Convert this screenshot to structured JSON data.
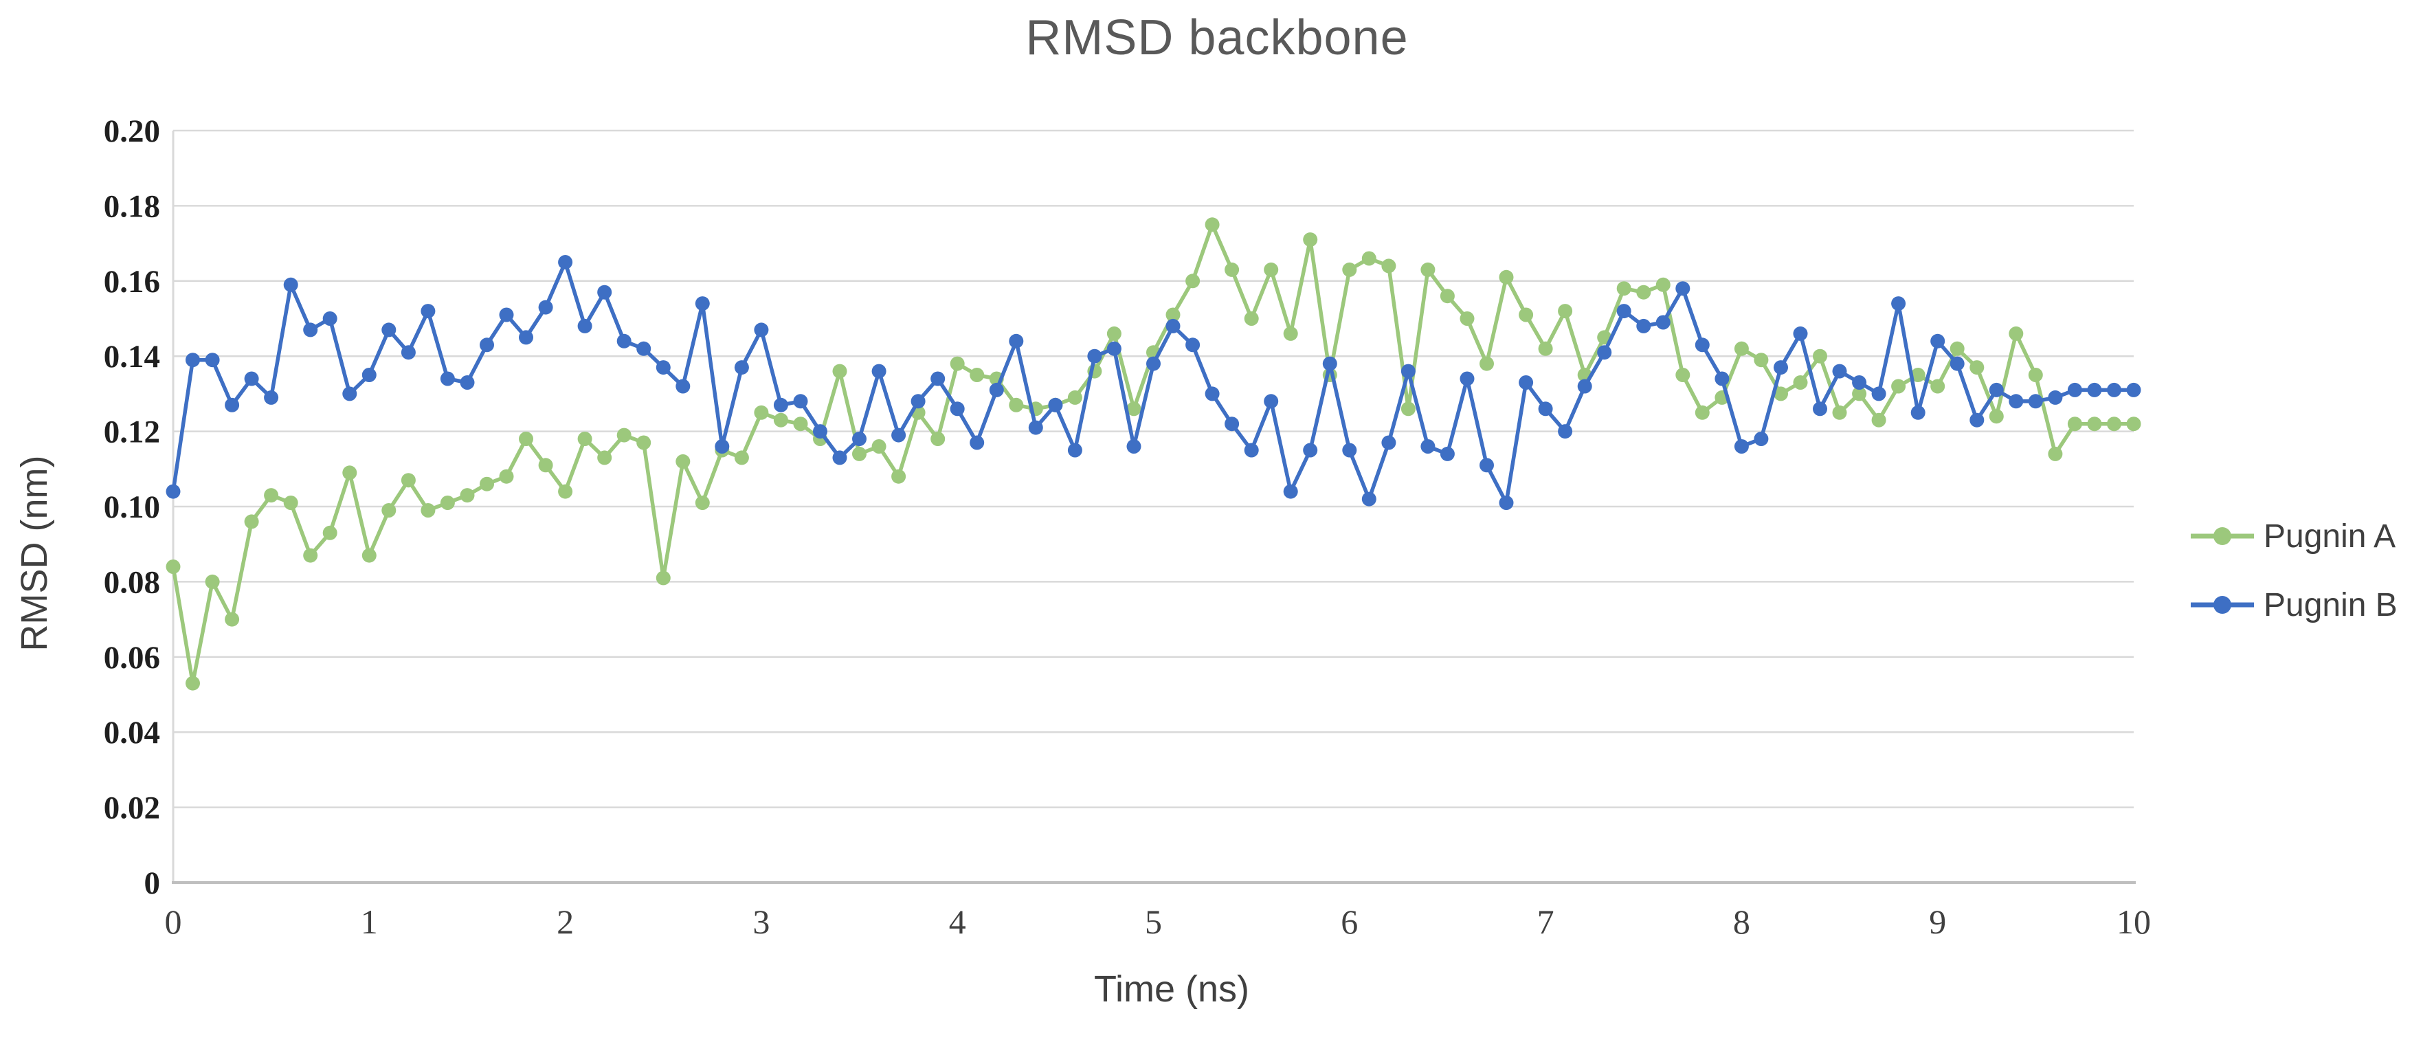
{
  "title": "RMSD backbone",
  "axes": {
    "x_label": "Time (ns)",
    "y_label": "RMSD (nm)"
  },
  "legend": {
    "items": [
      {
        "label": "Pugnin A",
        "color": "#9cc87c"
      },
      {
        "label": "Pugnin B",
        "color": "#3e6fc4"
      }
    ]
  },
  "chart_data": {
    "type": "line",
    "title": "RMSD backbone",
    "xlabel": "Time (ns)",
    "ylabel": "RMSD (nm)",
    "xlim": [
      0,
      10
    ],
    "ylim": [
      0,
      0.2
    ],
    "grid": true,
    "legend_position": "right",
    "x_ticks": [
      {
        "v": 0,
        "label": "0"
      },
      {
        "v": 1,
        "label": "1"
      },
      {
        "v": 2,
        "label": "2"
      },
      {
        "v": 3,
        "label": "3"
      },
      {
        "v": 4,
        "label": "4"
      },
      {
        "v": 5,
        "label": "5"
      },
      {
        "v": 6,
        "label": "6"
      },
      {
        "v": 7,
        "label": "7"
      },
      {
        "v": 8,
        "label": "8"
      },
      {
        "v": 9,
        "label": "9"
      },
      {
        "v": 10,
        "label": "10"
      }
    ],
    "y_ticks": [
      {
        "v": 0,
        "label": "0"
      },
      {
        "v": 0.02,
        "label": "0.02"
      },
      {
        "v": 0.04,
        "label": "0.04"
      },
      {
        "v": 0.06,
        "label": "0.06"
      },
      {
        "v": 0.08,
        "label": "0.08"
      },
      {
        "v": 0.1,
        "label": "0.10"
      },
      {
        "v": 0.12,
        "label": "0.12"
      },
      {
        "v": 0.14,
        "label": "0.14"
      },
      {
        "v": 0.16,
        "label": "0.16"
      },
      {
        "v": 0.18,
        "label": "0.18"
      },
      {
        "v": 0.2,
        "label": "0.20"
      }
    ],
    "x": [
      0,
      0.1,
      0.2,
      0.3,
      0.4,
      0.5,
      0.6,
      0.7,
      0.8,
      0.9,
      1,
      1.1,
      1.2,
      1.3,
      1.4,
      1.5,
      1.6,
      1.7,
      1.8,
      1.9,
      2,
      2.1,
      2.2,
      2.3,
      2.4,
      2.5,
      2.6,
      2.7,
      2.8,
      2.9,
      3,
      3.1,
      3.2,
      3.3,
      3.4,
      3.5,
      3.6,
      3.7,
      3.8,
      3.9,
      4,
      4.1,
      4.2,
      4.3,
      4.4,
      4.5,
      4.6,
      4.7,
      4.8,
      4.9,
      5,
      5.1,
      5.2,
      5.3,
      5.4,
      5.5,
      5.6,
      5.7,
      5.8,
      5.9,
      6,
      6.1,
      6.2,
      6.3,
      6.4,
      6.5,
      6.6,
      6.7,
      6.8,
      6.9,
      7,
      7.1,
      7.2,
      7.3,
      7.4,
      7.5,
      7.6,
      7.7,
      7.8,
      7.9,
      8,
      8.1,
      8.2,
      8.3,
      8.4,
      8.5,
      8.6,
      8.7,
      8.8,
      8.9,
      9,
      9.1,
      9.2,
      9.3,
      9.4,
      9.5,
      9.6,
      9.7,
      9.8,
      9.9,
      10
    ],
    "series": [
      {
        "name": "Pugnin A",
        "color": "#9cc87c",
        "values": [
          0.084,
          0.053,
          0.08,
          0.07,
          0.096,
          0.103,
          0.101,
          0.087,
          0.093,
          0.109,
          0.087,
          0.099,
          0.107,
          0.099,
          0.101,
          0.103,
          0.106,
          0.108,
          0.118,
          0.111,
          0.104,
          0.118,
          0.113,
          0.119,
          0.117,
          0.081,
          0.112,
          0.101,
          0.115,
          0.113,
          0.125,
          0.123,
          0.122,
          0.118,
          0.136,
          0.114,
          0.116,
          0.108,
          0.125,
          0.118,
          0.138,
          0.135,
          0.134,
          0.127,
          0.126,
          0.127,
          0.129,
          0.136,
          0.146,
          0.126,
          0.141,
          0.151,
          0.16,
          0.175,
          0.163,
          0.15,
          0.163,
          0.146,
          0.171,
          0.135,
          0.163,
          0.166,
          0.164,
          0.126,
          0.163,
          0.156,
          0.15,
          0.138,
          0.161,
          0.151,
          0.142,
          0.152,
          0.135,
          0.145,
          0.158,
          0.157,
          0.159,
          0.135,
          0.125,
          0.129,
          0.142,
          0.139,
          0.13,
          0.133,
          0.14,
          0.125,
          0.13,
          0.123,
          0.132,
          0.135,
          0.132,
          0.142,
          0.137,
          0.124,
          0.146,
          0.135,
          0.114,
          0.122,
          0.122,
          0.122,
          0.122
        ]
      },
      {
        "name": "Pugnin B",
        "color": "#3e6fc4",
        "values": [
          0.104,
          0.139,
          0.139,
          0.127,
          0.134,
          0.129,
          0.159,
          0.147,
          0.15,
          0.13,
          0.135,
          0.147,
          0.141,
          0.152,
          0.134,
          0.133,
          0.143,
          0.151,
          0.145,
          0.153,
          0.165,
          0.148,
          0.157,
          0.144,
          0.142,
          0.137,
          0.132,
          0.154,
          0.116,
          0.137,
          0.147,
          0.127,
          0.128,
          0.12,
          0.113,
          0.118,
          0.136,
          0.119,
          0.128,
          0.134,
          0.126,
          0.117,
          0.131,
          0.144,
          0.121,
          0.127,
          0.115,
          0.14,
          0.142,
          0.116,
          0.138,
          0.148,
          0.143,
          0.13,
          0.122,
          0.115,
          0.128,
          0.104,
          0.115,
          0.138,
          0.115,
          0.102,
          0.117,
          0.136,
          0.116,
          0.114,
          0.134,
          0.111,
          0.101,
          0.133,
          0.126,
          0.12,
          0.132,
          0.141,
          0.152,
          0.148,
          0.149,
          0.158,
          0.143,
          0.134,
          0.116,
          0.118,
          0.137,
          0.146,
          0.126,
          0.136,
          0.133,
          0.13,
          0.154,
          0.125,
          0.144,
          0.138,
          0.123,
          0.131,
          0.128,
          0.128,
          0.129,
          0.131,
          0.131,
          0.131,
          0.131
        ]
      }
    ]
  },
  "style": {
    "gridline_color": "#d9d9d9",
    "y_axis_line_color": "#d9d9d9",
    "x_axis_line_color": "#bfbfbf"
  }
}
